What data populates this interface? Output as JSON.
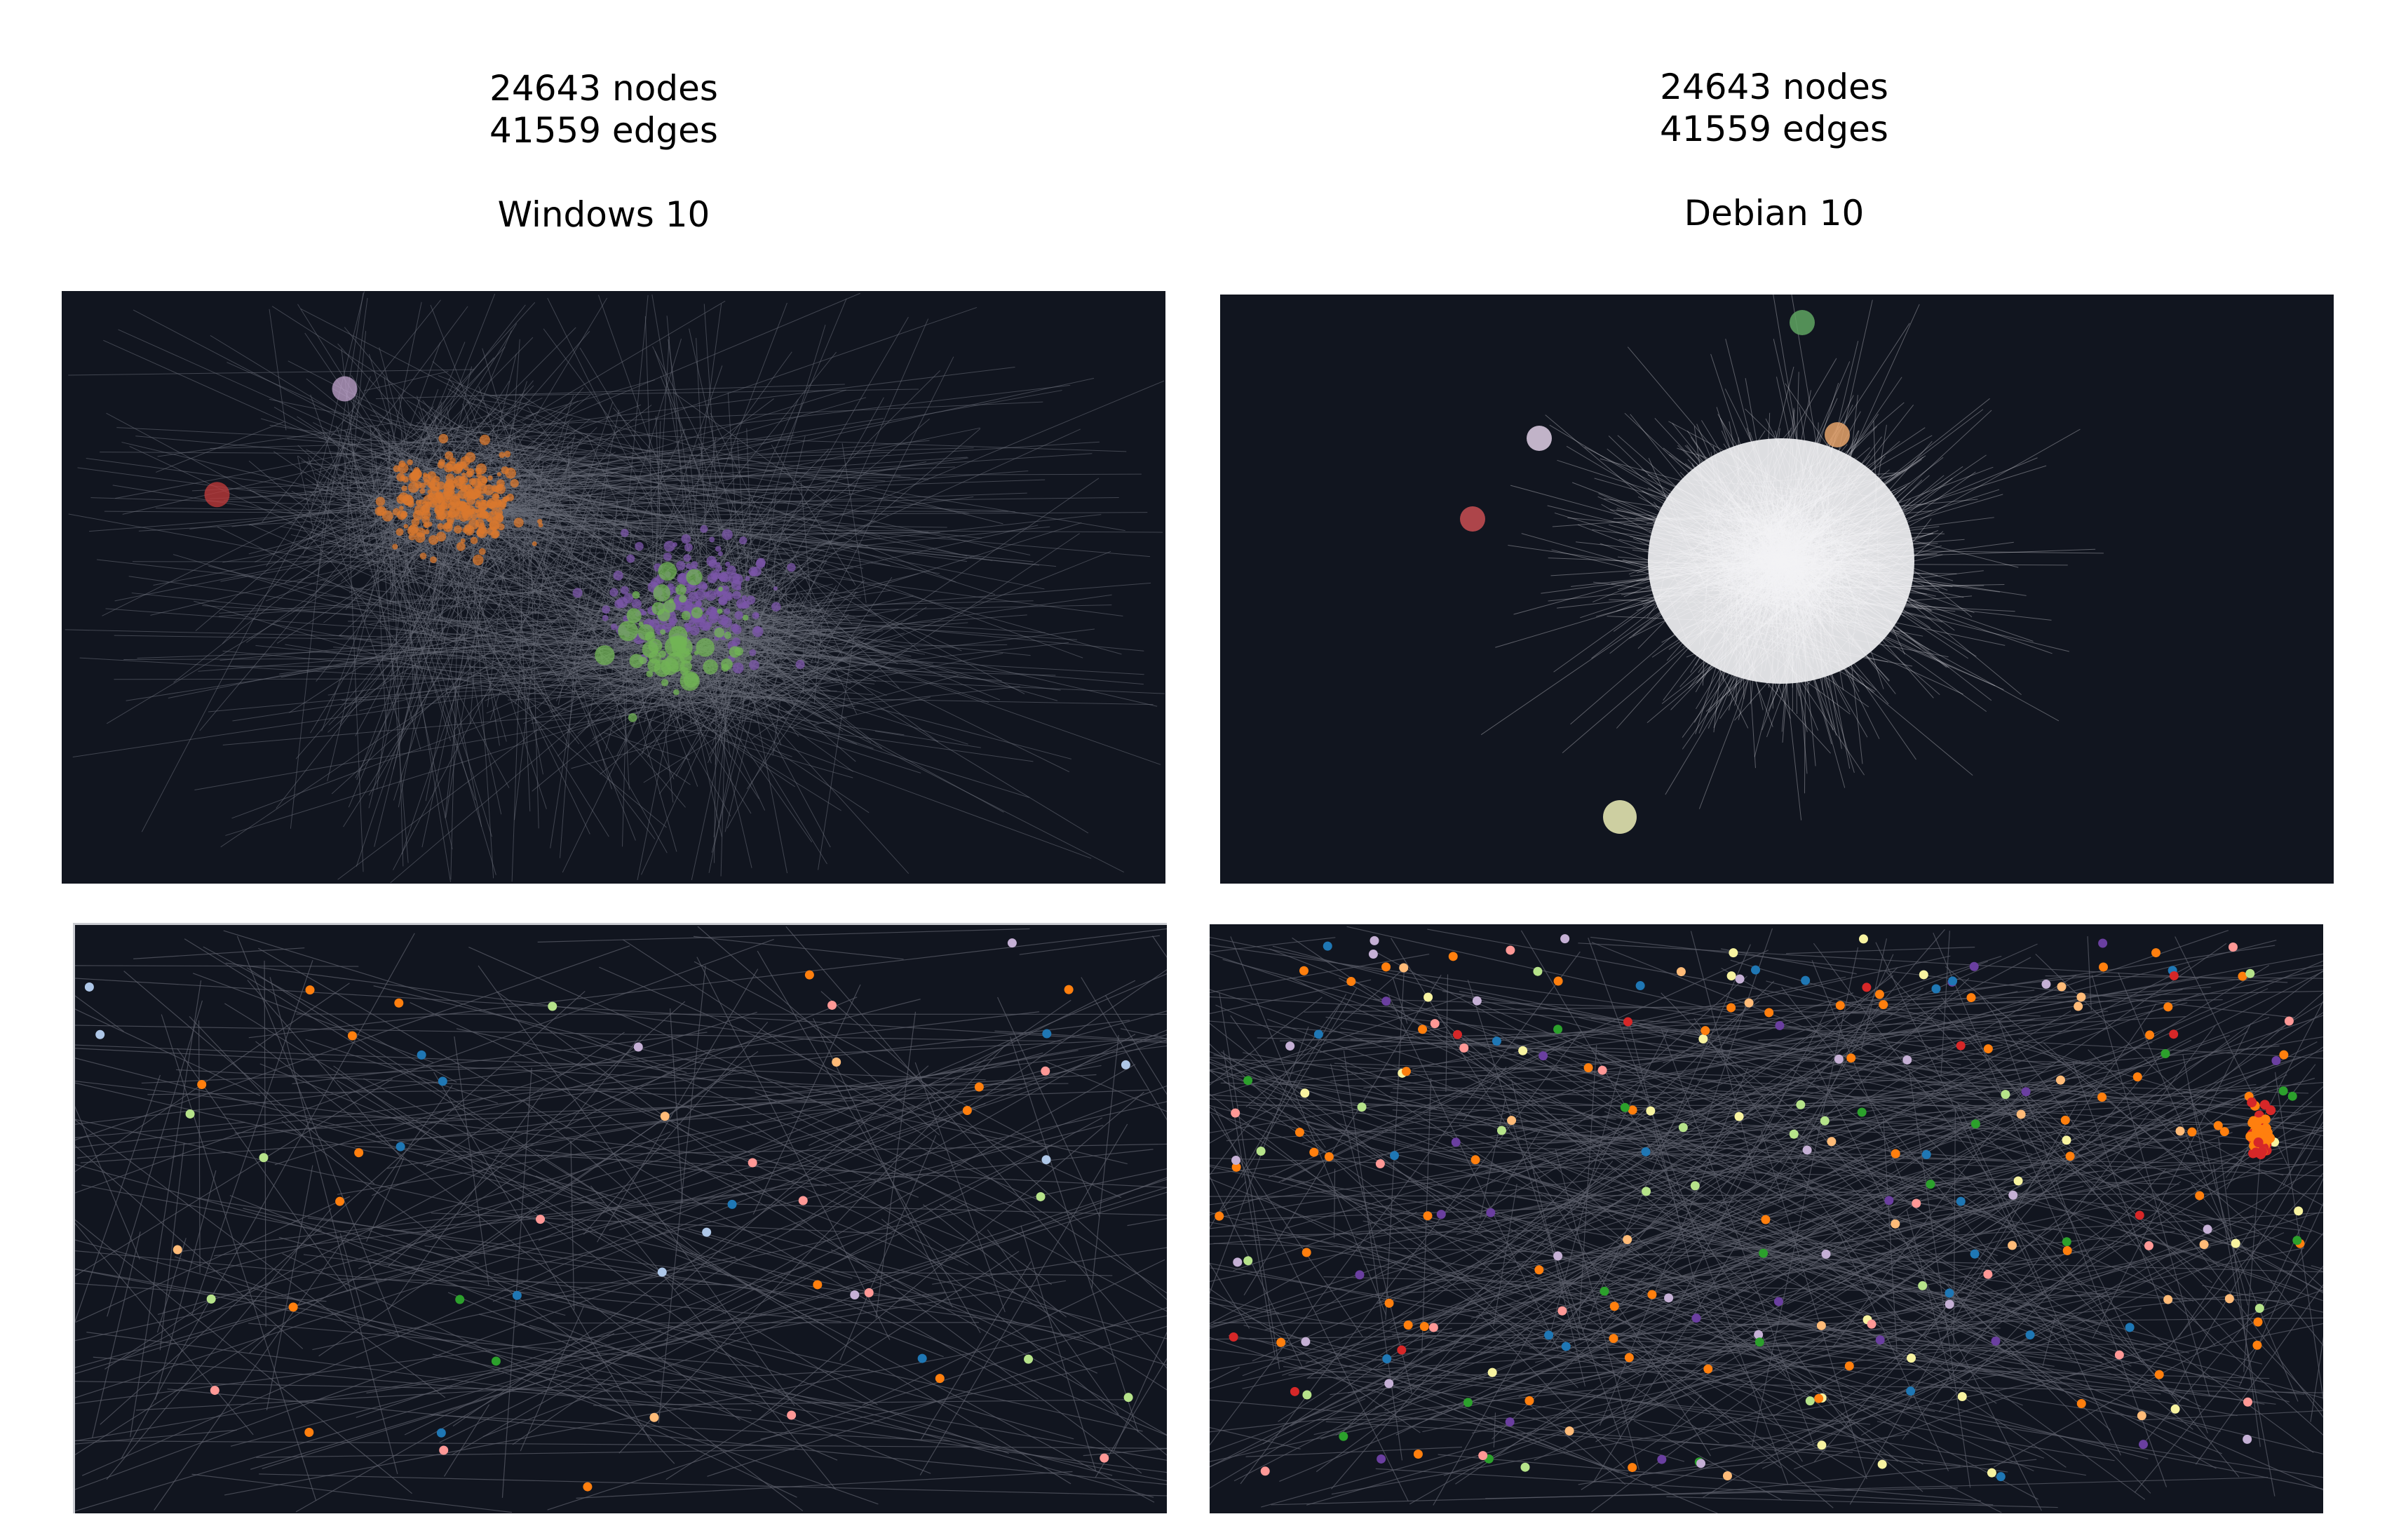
{
  "graphs": [
    {
      "nodes_label": "24643 nodes",
      "edges_label": "41559 edges",
      "os_label": "Windows 10",
      "edge_color": "#6a6e78",
      "clusters": [
        {
          "color": "#d9782e",
          "label": "orange-cluster"
        },
        {
          "color": "#7b55a8",
          "label": "purple-cluster"
        },
        {
          "color": "#72b455",
          "label": "green-cluster"
        },
        {
          "color": "#c53b3b",
          "label": "red-cluster"
        },
        {
          "color": "#c3a6cf",
          "label": "lavender-cluster"
        }
      ]
    },
    {
      "nodes_label": "24643 nodes",
      "edges_label": "41559 edges",
      "os_label": "Debian 10",
      "edge_color": "#e6e6ea",
      "clusters": [
        {
          "color": "#5fa561",
          "label": "green-cluster"
        },
        {
          "color": "#e0cfe6",
          "label": "lavender-cluster"
        },
        {
          "color": "#c94e52",
          "label": "red-cluster"
        },
        {
          "color": "#eef0b8",
          "label": "yellow-cluster"
        },
        {
          "color": "#e6a36b",
          "label": "orange-cluster"
        }
      ]
    }
  ],
  "node_palette": {
    "orange": "#ff7f0e",
    "lavender": "#c5b0d5",
    "green": "#2ca02c",
    "light_green": "#b6e38a",
    "blue": "#1f77b4",
    "light_blue": "#aec7e8",
    "peach": "#ffbb78",
    "pink": "#ff9896",
    "purple": "#6a3fa0",
    "red": "#d62728",
    "yellow": "#f7f3a0",
    "background": "#11151f",
    "zoom_edge": "#5c606b"
  }
}
